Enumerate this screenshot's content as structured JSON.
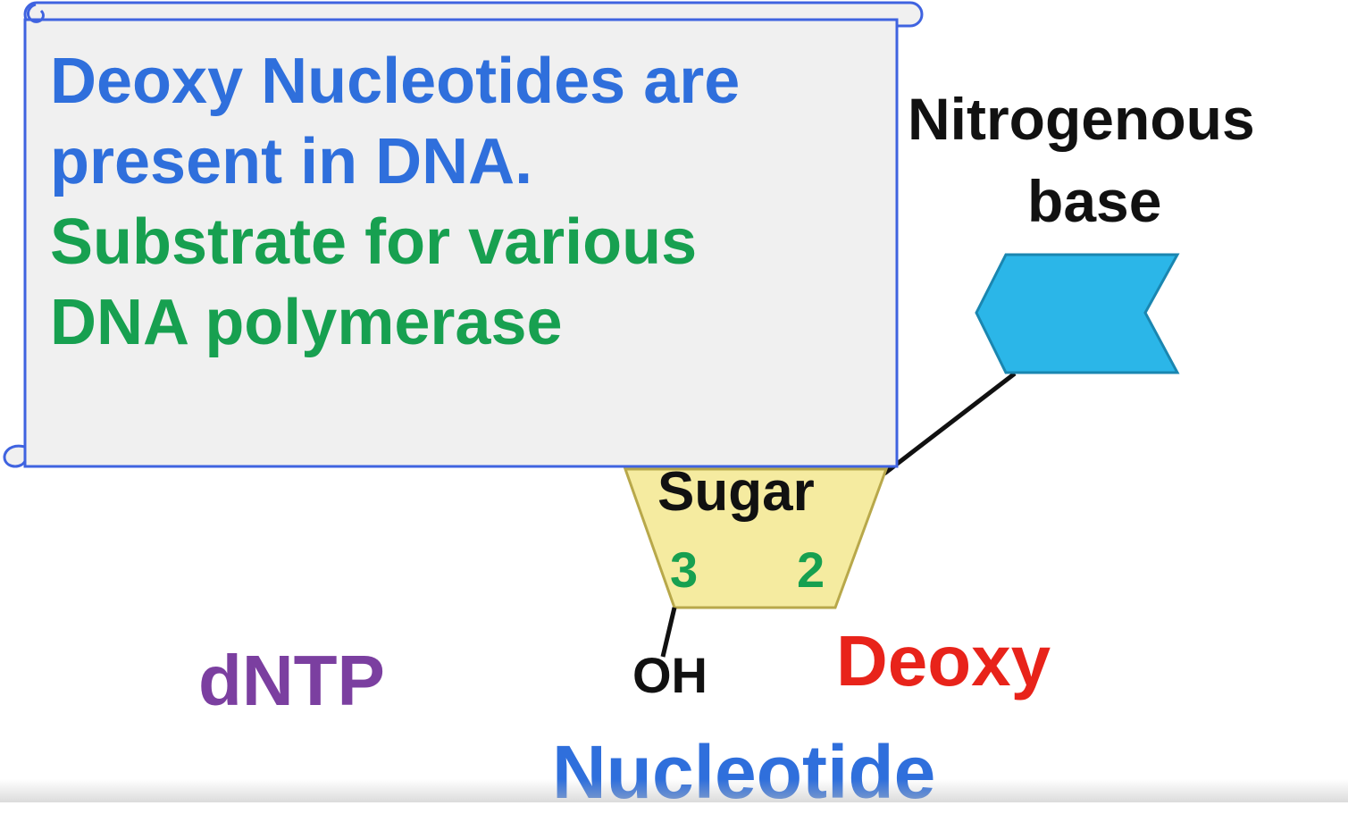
{
  "scroll": {
    "line1": "Deoxy Nucleotides are",
    "line2": "present in DNA.",
    "line3": "Substrate for various",
    "line4": "DNA polymerase"
  },
  "labels": {
    "nitrogenous_line1": "Nitrogenous",
    "nitrogenous_line2": "base",
    "sugar": "Sugar",
    "carbon_3": "3",
    "carbon_2": "2",
    "hydroxyl": "OH",
    "deoxy": "Deoxy",
    "dntp": "dNTP",
    "nucleotide": "Nucleotide"
  },
  "colors": {
    "blue_text": "#2f6fdc",
    "green_text": "#17a050",
    "red_text": "#e8231a",
    "purple_text": "#7b3fa0",
    "scroll_border": "#3f63e0",
    "scroll_fill": "#f0f0f0",
    "sugar_fill": "#f5eba0",
    "base_fill": "#2bb6e8"
  }
}
